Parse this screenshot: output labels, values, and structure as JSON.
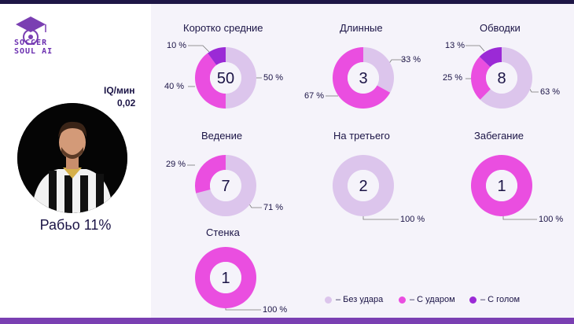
{
  "brand": {
    "logo_text_line1": "SOCCER",
    "logo_text_line2": "SOUL AI"
  },
  "player": {
    "iq_label": "IQ/мин",
    "iq_value": "0,02",
    "name": "Рабьо 11%"
  },
  "colors": {
    "no_shot": "#dcc5ec",
    "with_shot": "#ea4ee0",
    "with_goal": "#9b2ad6"
  },
  "legend": [
    {
      "label": "– Без удара",
      "color_key": "no_shot"
    },
    {
      "label": "– С ударом",
      "color_key": "with_shot"
    },
    {
      "label": "– С голом",
      "color_key": "with_goal"
    }
  ],
  "chart_data": [
    {
      "type": "pie",
      "title": "Коротко средние",
      "total": "50",
      "segments": [
        {
          "name": "Без удара",
          "value": 50,
          "label": "50 %"
        },
        {
          "name": "С ударом",
          "value": 40,
          "label": "40 %"
        },
        {
          "name": "С голом",
          "value": 10,
          "label": "10 %"
        }
      ]
    },
    {
      "type": "pie",
      "title": "Длинные",
      "total": "3",
      "segments": [
        {
          "name": "Без удара",
          "value": 33,
          "label": "33 %"
        },
        {
          "name": "С ударом",
          "value": 67,
          "label": "67 %"
        }
      ]
    },
    {
      "type": "pie",
      "title": "Обводки",
      "total": "8",
      "segments": [
        {
          "name": "Без удара",
          "value": 63,
          "label": "63 %"
        },
        {
          "name": "С ударом",
          "value": 25,
          "label": "25 %"
        },
        {
          "name": "С голом",
          "value": 13,
          "label": "13 %"
        }
      ]
    },
    {
      "type": "pie",
      "title": "Ведение",
      "total": "7",
      "segments": [
        {
          "name": "Без удара",
          "value": 71,
          "label": "71 %"
        },
        {
          "name": "С ударом",
          "value": 29,
          "label": "29 %"
        }
      ]
    },
    {
      "type": "pie",
      "title": "На третьего",
      "total": "2",
      "segments": [
        {
          "name": "Без удара",
          "value": 100,
          "label": "100 %"
        }
      ]
    },
    {
      "type": "pie",
      "title": "Забегание",
      "total": "1",
      "segments": [
        {
          "name": "С ударом",
          "value": 100,
          "label": "100 %"
        }
      ]
    },
    {
      "type": "pie",
      "title": "Стенка",
      "total": "1",
      "segments": [
        {
          "name": "С ударом",
          "value": 100,
          "label": "100 %"
        }
      ]
    }
  ]
}
